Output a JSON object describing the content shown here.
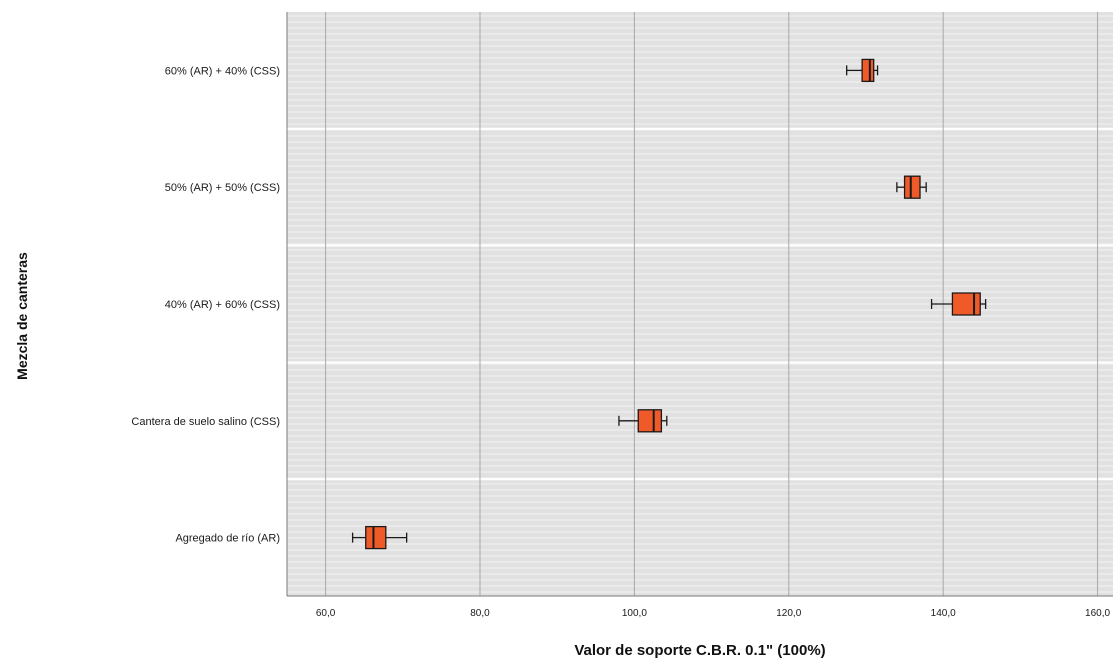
{
  "chart_data": {
    "type": "boxplot",
    "orientation": "horizontal",
    "xlabel": "Valor de soporte C.B.R. 0.1\" (100%)",
    "ylabel": "Mezcla de canteras",
    "xlim": [
      55,
      162
    ],
    "xticks": [
      60,
      80,
      100,
      120,
      140,
      160
    ],
    "xtick_labels": [
      "60,0",
      "80,0",
      "100,0",
      "120,0",
      "140,0",
      "160,0"
    ],
    "grid": true,
    "categories": [
      "60% (AR) + 40% (CSS)",
      "50% (AR) + 50% (CSS)",
      "40% (AR) + 60% (CSS)",
      "Cantera de suelo salino (CSS)",
      "Agregado de río (AR)"
    ],
    "boxes": [
      {
        "min": 127.5,
        "q1": 129.5,
        "median": 130.5,
        "q3": 131.0,
        "max": 131.5
      },
      {
        "min": 134.0,
        "q1": 135.0,
        "median": 135.8,
        "q3": 137.0,
        "max": 137.8
      },
      {
        "min": 138.5,
        "q1": 141.2,
        "median": 144.0,
        "q3": 144.8,
        "max": 145.5
      },
      {
        "min": 98.0,
        "q1": 100.5,
        "median": 102.5,
        "q3": 103.5,
        "max": 104.2
      },
      {
        "min": 63.5,
        "q1": 65.2,
        "median": 66.2,
        "q3": 67.8,
        "max": 70.5
      }
    ],
    "colors": {
      "plot_background": "#e1e1e1",
      "box_fill": "#f05a28",
      "box_stroke": "#1a1a1a",
      "grid_major": "#a8a8a8",
      "grid_minor": "#f4f4f4",
      "separator": "#ffffff"
    }
  }
}
